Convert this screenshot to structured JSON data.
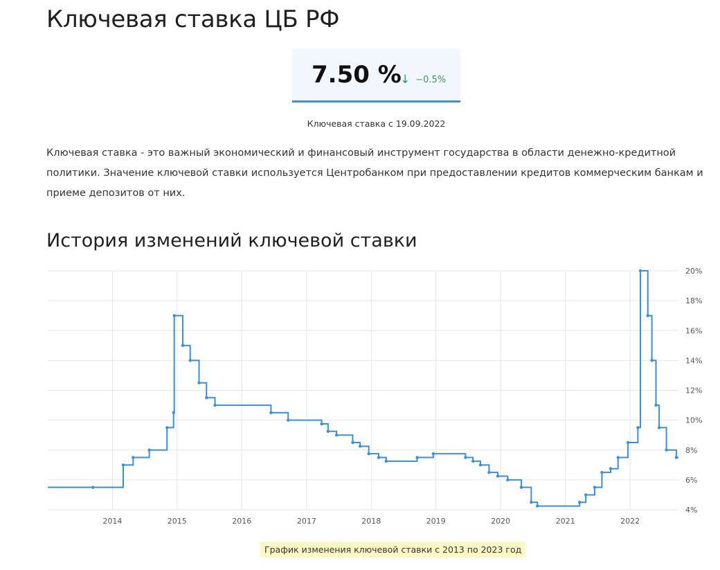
{
  "page": {
    "title": "Ключевая ставка ЦБ РФ",
    "intro": "Ключевая ставка - это важный экономический и финансовый инструмент государства в области денежно-кредитной политики. Значение ключевой ставки используется Центробанком при предоставлении кредитов коммерческим банкам и приеме депозитов от них.",
    "history_title": "История изменений ключевой ставки",
    "chart_caption": "График изменения ключевой ставки с 2013 по 2023 год"
  },
  "rate_card": {
    "value": "7.50 %",
    "change": "−0.5%",
    "change_icon": "arrow-down-icon",
    "date_label": "Ключевая ставка с 19.09.2022"
  },
  "colors": {
    "line": "#3a8fd8",
    "card_bg": "#f1f7fd",
    "change": "#3a9a55",
    "caption_bg": "#fdf7c5"
  },
  "chart_data": {
    "type": "line",
    "step": true,
    "title": "",
    "xlabel": "",
    "ylabel": "",
    "xlim": [
      "2013-01-01",
      "2022-10-01"
    ],
    "ylim": [
      4,
      20
    ],
    "x_ticks": [
      "2014",
      "2015",
      "2016",
      "2017",
      "2018",
      "2019",
      "2020",
      "2021",
      "2022"
    ],
    "y_ticks": [
      "4%",
      "6%",
      "8%",
      "10%",
      "12%",
      "14%",
      "16%",
      "18%",
      "20%"
    ],
    "grid": true,
    "series": [
      {
        "points": [
          {
            "x": "2013-09-13",
            "y": 5.5
          },
          {
            "x": "2014-03-03",
            "y": 7.0
          },
          {
            "x": "2014-04-28",
            "y": 7.5
          },
          {
            "x": "2014-07-28",
            "y": 8.0
          },
          {
            "x": "2014-11-05",
            "y": 9.5
          },
          {
            "x": "2014-12-12",
            "y": 10.5
          },
          {
            "x": "2014-12-16",
            "y": 17.0
          },
          {
            "x": "2015-02-02",
            "y": 15.0
          },
          {
            "x": "2015-03-16",
            "y": 14.0
          },
          {
            "x": "2015-05-05",
            "y": 12.5
          },
          {
            "x": "2015-06-16",
            "y": 11.5
          },
          {
            "x": "2015-08-03",
            "y": 11.0
          },
          {
            "x": "2016-06-14",
            "y": 10.5
          },
          {
            "x": "2016-09-19",
            "y": 10.0
          },
          {
            "x": "2017-03-27",
            "y": 9.75
          },
          {
            "x": "2017-05-02",
            "y": 9.25
          },
          {
            "x": "2017-06-19",
            "y": 9.0
          },
          {
            "x": "2017-09-18",
            "y": 8.5
          },
          {
            "x": "2017-10-30",
            "y": 8.25
          },
          {
            "x": "2017-12-18",
            "y": 7.75
          },
          {
            "x": "2018-02-12",
            "y": 7.5
          },
          {
            "x": "2018-03-26",
            "y": 7.25
          },
          {
            "x": "2018-09-17",
            "y": 7.5
          },
          {
            "x": "2018-12-17",
            "y": 7.75
          },
          {
            "x": "2019-06-17",
            "y": 7.5
          },
          {
            "x": "2019-07-29",
            "y": 7.25
          },
          {
            "x": "2019-09-09",
            "y": 7.0
          },
          {
            "x": "2019-10-28",
            "y": 6.5
          },
          {
            "x": "2019-12-16",
            "y": 6.25
          },
          {
            "x": "2020-02-10",
            "y": 6.0
          },
          {
            "x": "2020-04-27",
            "y": 5.5
          },
          {
            "x": "2020-06-22",
            "y": 4.5
          },
          {
            "x": "2020-07-27",
            "y": 4.25
          },
          {
            "x": "2021-03-22",
            "y": 4.5
          },
          {
            "x": "2021-04-26",
            "y": 5.0
          },
          {
            "x": "2021-06-15",
            "y": 5.5
          },
          {
            "x": "2021-07-26",
            "y": 6.5
          },
          {
            "x": "2021-09-13",
            "y": 6.75
          },
          {
            "x": "2021-10-25",
            "y": 7.5
          },
          {
            "x": "2021-12-20",
            "y": 8.5
          },
          {
            "x": "2022-02-14",
            "y": 9.5
          },
          {
            "x": "2022-02-28",
            "y": 20.0
          },
          {
            "x": "2022-04-11",
            "y": 17.0
          },
          {
            "x": "2022-05-04",
            "y": 14.0
          },
          {
            "x": "2022-05-27",
            "y": 11.0
          },
          {
            "x": "2022-06-14",
            "y": 9.5
          },
          {
            "x": "2022-07-25",
            "y": 8.0
          },
          {
            "x": "2022-09-19",
            "y": 7.5
          }
        ]
      }
    ]
  }
}
